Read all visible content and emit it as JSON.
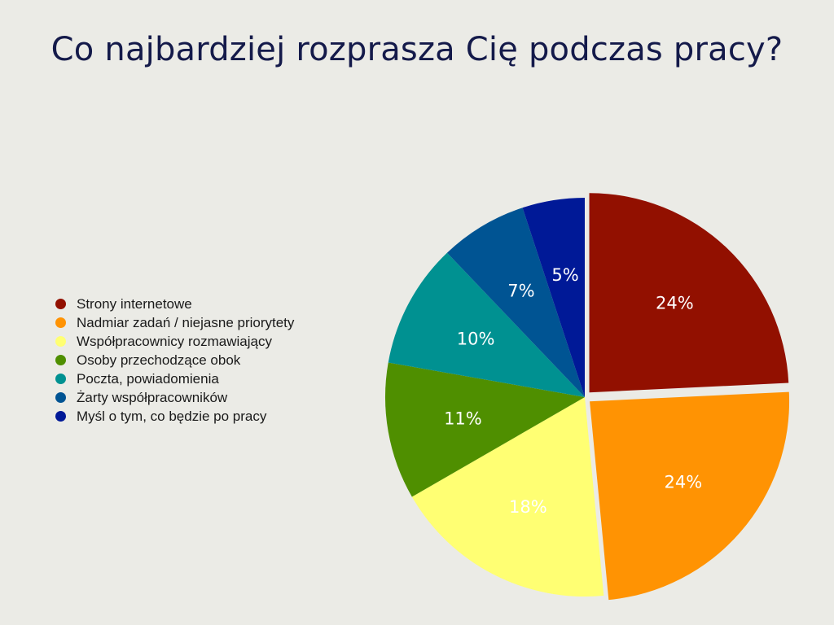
{
  "chart_data": {
    "type": "pie",
    "title": "Co najbardziej rozprasza Cię podczas pracy?",
    "legend_position": "left",
    "slices": [
      {
        "label": "Strony internetowe",
        "value": 24,
        "display": "24%",
        "color": "#921000",
        "exploded": true
      },
      {
        "label": "Nadmiar zadań / niejasne priorytety",
        "value": 24,
        "display": "24%",
        "color": "#ff9303",
        "exploded": true
      },
      {
        "label": "Współpracownicy rozmawiający",
        "value": 18,
        "display": "18%",
        "color": "#ffff73",
        "exploded": false
      },
      {
        "label": "Osoby przechodzące obok",
        "value": 11,
        "display": "11%",
        "color": "#4f8f00",
        "exploded": false
      },
      {
        "label": "Poczta, powiadomienia",
        "value": 10,
        "display": "10%",
        "color": "#009191",
        "exploded": false
      },
      {
        "label": "Żarty współpracowników",
        "value": 7,
        "display": "7%",
        "color": "#005493",
        "exploded": false
      },
      {
        "label": "Myśl o tym, co będzie po pracy",
        "value": 5,
        "display": "5%",
        "color": "#001997",
        "exploded": false
      }
    ]
  }
}
